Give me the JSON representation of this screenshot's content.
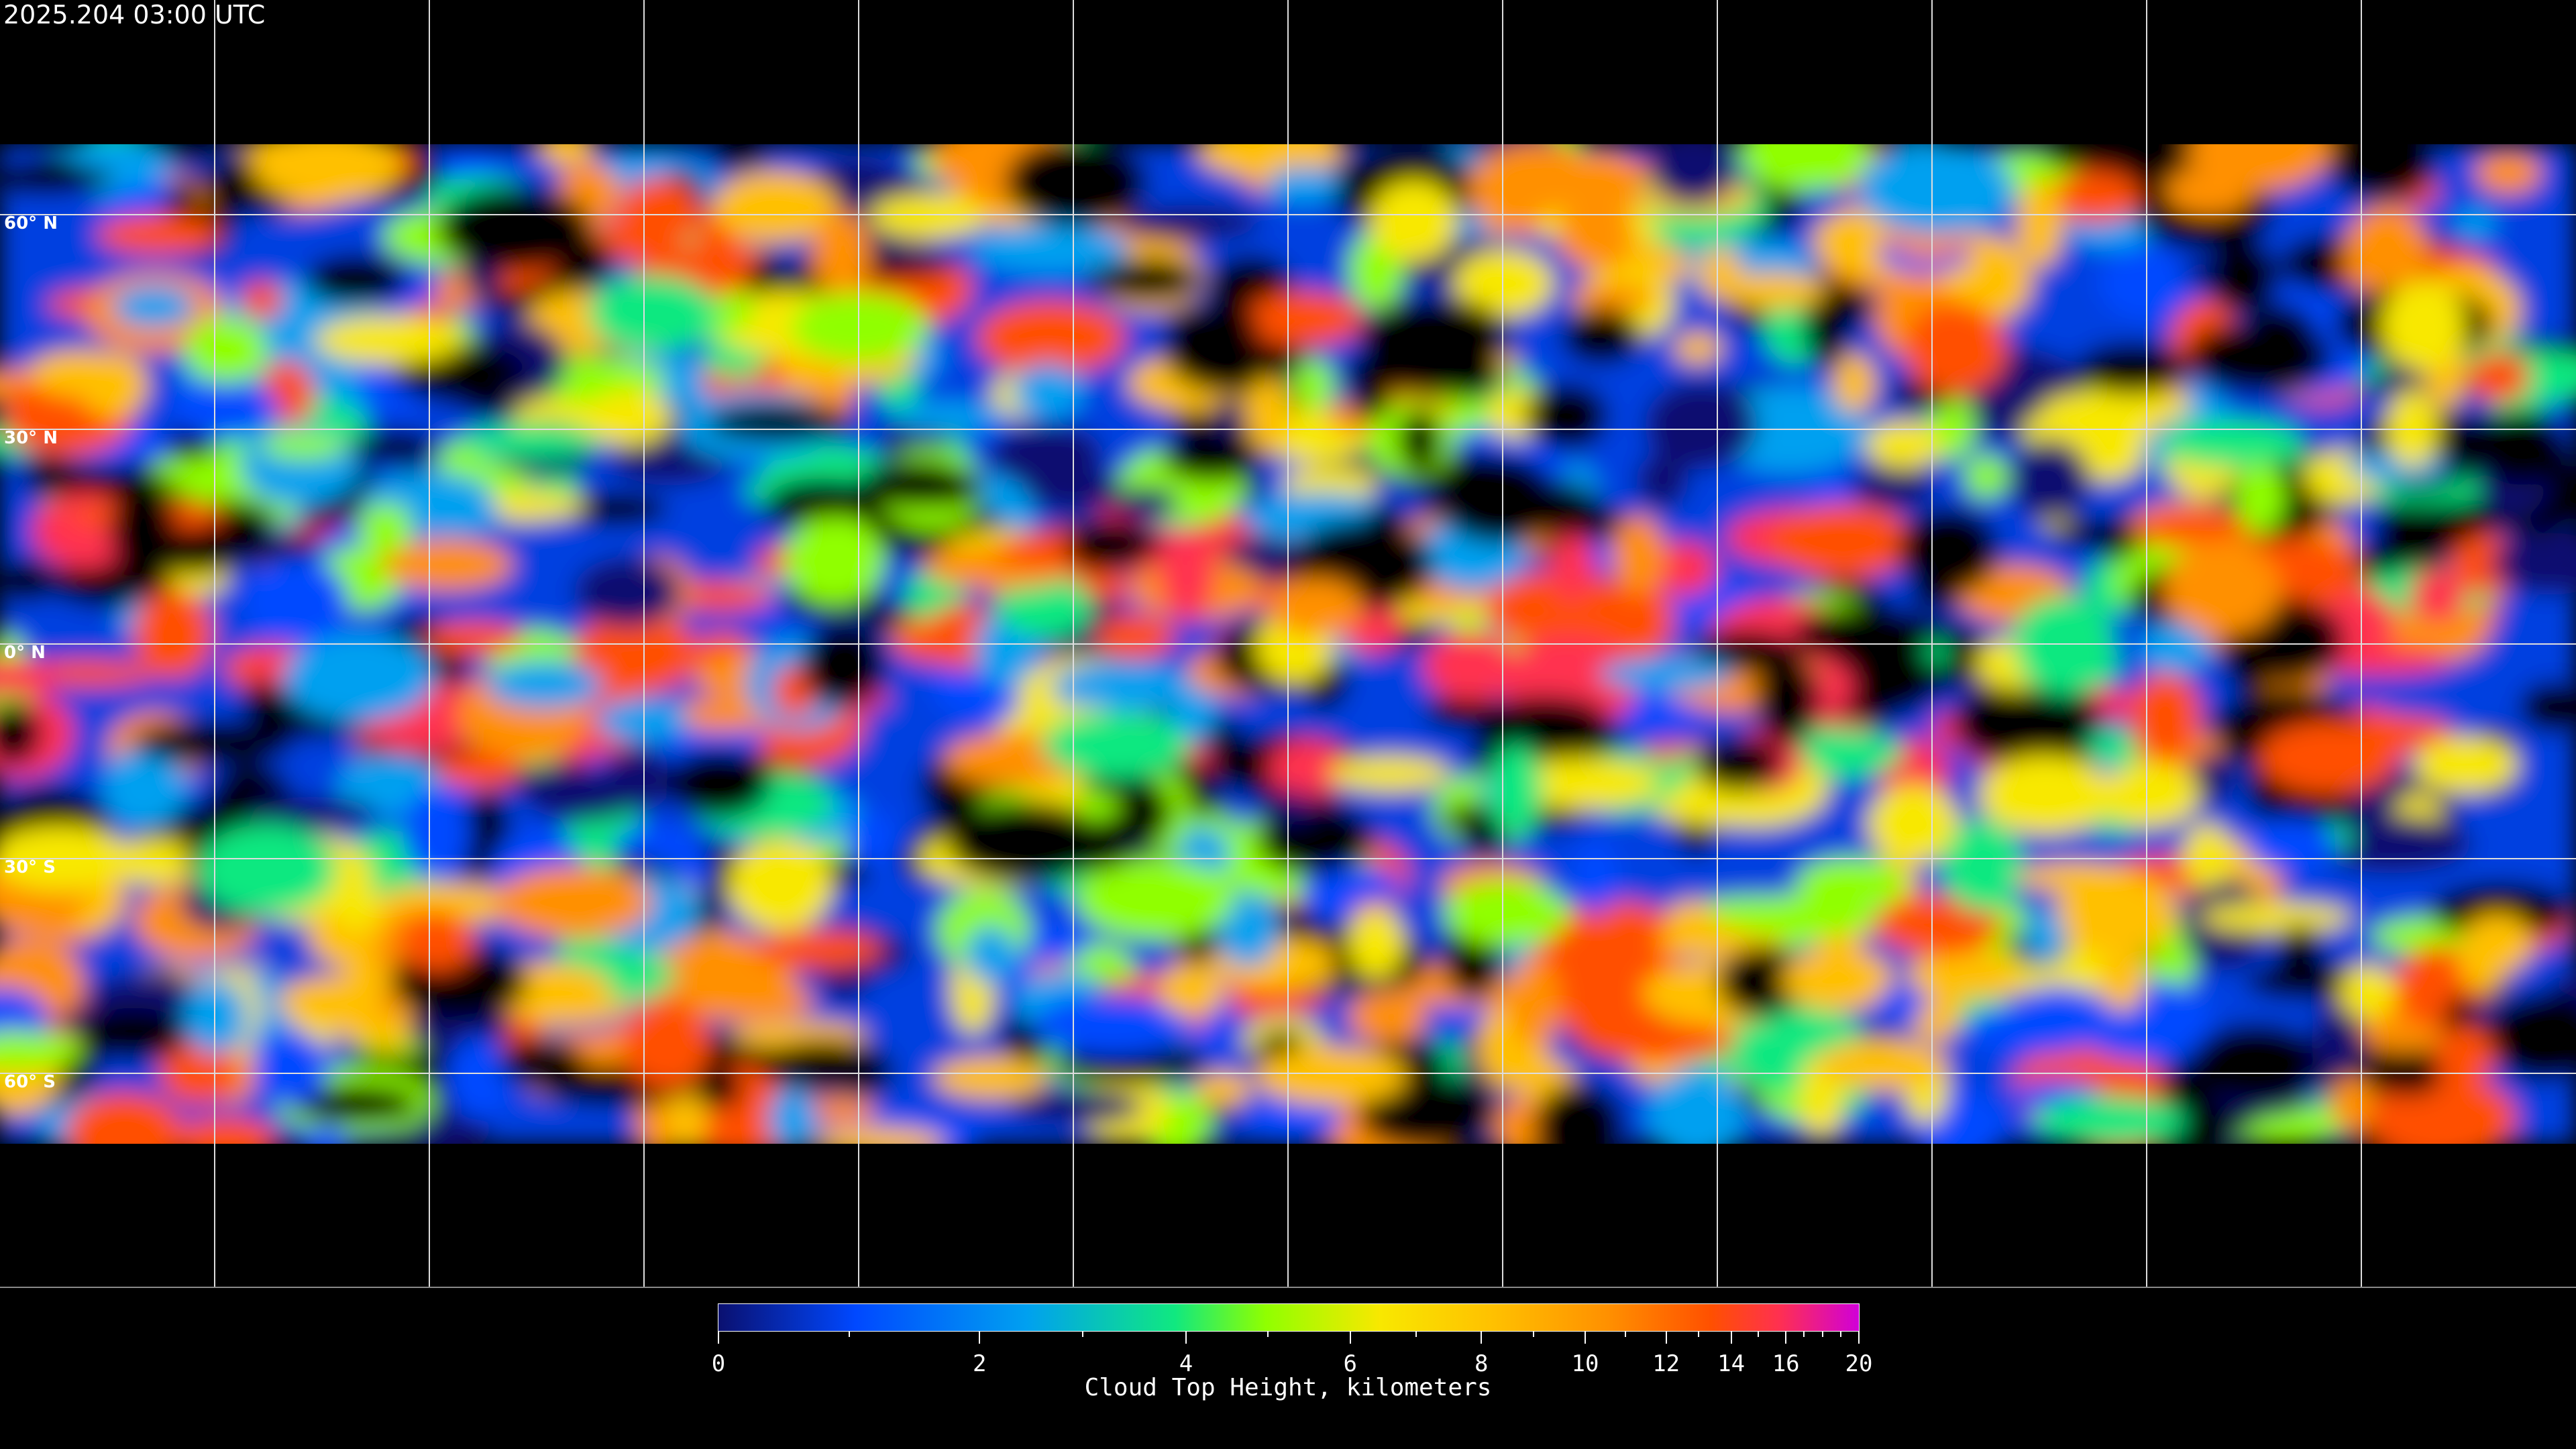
{
  "title": "2025.204 03:00 UTC",
  "map": {
    "projection": "equirectangular",
    "grid_spacing_degrees": 30,
    "latitude_labels": [
      "60° N",
      "30° N",
      "0° N",
      "30° S",
      "60° S"
    ],
    "coastline_color": "#ffffff",
    "background_color": "#000000"
  },
  "colorbar": {
    "label": "Cloud Top Height, kilometers",
    "min": 0,
    "max": 20,
    "major_ticks": [
      "0",
      "2",
      "4",
      "6",
      "8",
      "10",
      "12",
      "14",
      "16",
      "20"
    ],
    "minor_ticks": [
      1,
      3,
      5,
      7,
      9,
      11,
      13,
      15,
      17,
      18,
      19
    ],
    "colors": [
      "#0a1070",
      "#0048ff",
      "#00a0f0",
      "#10e880",
      "#90ff00",
      "#f8e800",
      "#ffc000",
      "#ff9000",
      "#ff5000",
      "#ff3050",
      "#d000d8"
    ]
  }
}
